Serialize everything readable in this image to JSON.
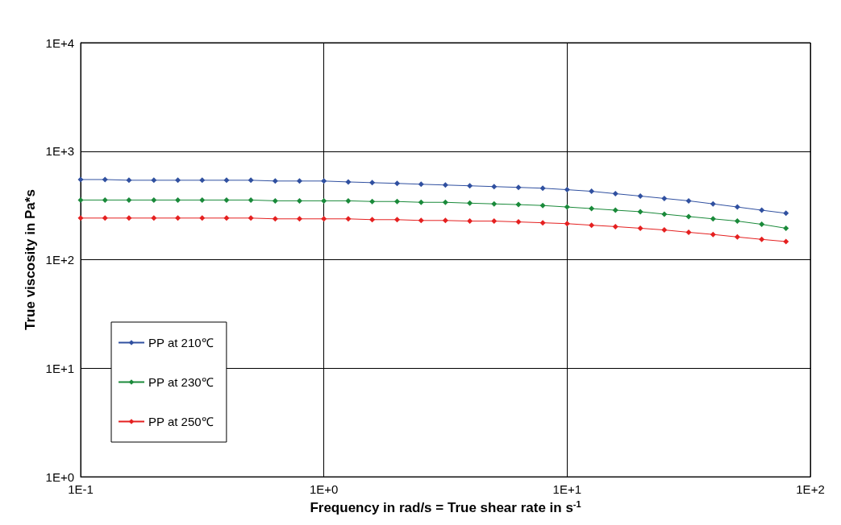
{
  "chart_data": {
    "type": "line",
    "xlabel": "Frequency in rad/s = True shear rate in s$^{-1}$",
    "ylabel": "True viscosity in Pa*s",
    "log": "xy",
    "grid": true,
    "legend": "bottom left",
    "marker": "diamond",
    "line_style": "solid",
    "xlim": [
      0.1,
      100
    ],
    "xticks": [
      {
        "value": 0.1,
        "label": "1E-1"
      },
      {
        "value": 1,
        "label": "1E+0"
      },
      {
        "value": 10,
        "label": "1E+1"
      },
      {
        "value": 100,
        "label": "1E+2"
      }
    ],
    "ylim": [
      1,
      10000
    ],
    "yticks": [
      {
        "value": 1,
        "label": "1E+0"
      },
      {
        "value": 10,
        "label": "1E+1"
      },
      {
        "value": 100,
        "label": "1E+2"
      },
      {
        "value": 1000,
        "label": "1E+3"
      },
      {
        "value": 10000,
        "label": "1E+4"
      }
    ],
    "x": [
      0.1,
      0.126,
      0.158,
      0.2,
      0.251,
      0.316,
      0.398,
      0.501,
      0.631,
      0.794,
      1,
      1.26,
      1.58,
      2,
      2.51,
      3.16,
      3.98,
      5.01,
      6.31,
      7.94,
      10,
      12.6,
      15.8,
      20,
      25.1,
      31.6,
      39.8,
      50.1,
      63.1,
      79.4
    ],
    "series": [
      {
        "name": "PP at 210℃",
        "color": "#3050a0",
        "values": [
          548,
          548,
          540,
          540,
          540,
          540,
          540,
          540,
          531,
          531,
          531,
          521,
          513,
          505,
          496,
          488,
          480,
          472,
          464,
          456,
          442,
          427,
          406,
          386,
          367,
          349,
          327,
          306,
          286,
          268
        ]
      },
      {
        "name": "PP at 230℃",
        "color": "#1a8a3a",
        "values": [
          355,
          355,
          355,
          355,
          355,
          355,
          355,
          355,
          349,
          349,
          349,
          349,
          344,
          344,
          338,
          338,
          332,
          327,
          322,
          316,
          306,
          296,
          286,
          277,
          263,
          250,
          238,
          227,
          212,
          195
        ]
      },
      {
        "name": "PP at 250℃",
        "color": "#e52020",
        "values": [
          242,
          242,
          242,
          242,
          242,
          242,
          242,
          242,
          238,
          238,
          238,
          238,
          234,
          234,
          230,
          230,
          227,
          227,
          223,
          219,
          215,
          208,
          202,
          195,
          188,
          179,
          171,
          162,
          154,
          147
        ]
      }
    ]
  }
}
